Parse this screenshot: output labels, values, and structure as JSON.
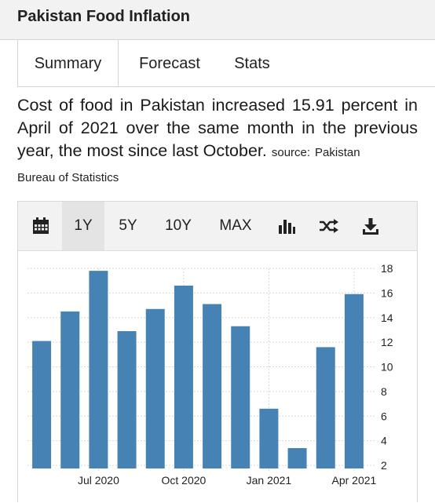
{
  "header": {
    "title": "Pakistan Food Inflation"
  },
  "tabs": [
    {
      "label": "Summary"
    },
    {
      "label": "Forecast"
    },
    {
      "label": "Stats"
    }
  ],
  "summary": {
    "text": "Cost of food in Pakistan increased 15.91 percent in April of 2021 over the same month in the previous year, the most since last October.",
    "source_prefix": "source:",
    "source_name_line1": "Pakistan",
    "source_name_line2": "Bureau of Statistics"
  },
  "toolbar": {
    "calendar_icon": "calendar-icon",
    "ranges": [
      "1Y",
      "5Y",
      "10Y",
      "MAX"
    ],
    "active_range": "1Y",
    "bar_chart_icon": "bar-chart-icon",
    "shuffle_icon": "shuffle-icon",
    "download_icon": "download-icon"
  },
  "colors": {
    "bar": "#4682b4",
    "grid": "#d8d8d8",
    "text": "#222222"
  },
  "chart_data": {
    "type": "bar",
    "categories": [
      "2020-05",
      "2020-06",
      "2020-07",
      "2020-08",
      "2020-09",
      "2020-10",
      "2020-11",
      "2020-12",
      "2021-01",
      "2021-02",
      "2021-03",
      "2021-04"
    ],
    "values": [
      12.1,
      14.5,
      17.8,
      12.9,
      14.7,
      16.6,
      15.1,
      13.3,
      6.6,
      3.4,
      11.6,
      15.91
    ],
    "x_tick_labels": [
      {
        "label": "Jul 2020",
        "category": "2020-07"
      },
      {
        "label": "Oct 2020",
        "category": "2020-10"
      },
      {
        "label": "Jan 2021",
        "category": "2021-01"
      },
      {
        "label": "Apr 2021",
        "category": "2021-04"
      }
    ],
    "y_ticks": [
      2,
      4,
      6,
      8,
      10,
      12,
      14,
      16,
      18
    ],
    "ylim": [
      2,
      18
    ],
    "y_axis_side": "right",
    "grid": "horizontal dotted and vertical at quarter ticks",
    "xlabel": "",
    "ylabel": ""
  }
}
